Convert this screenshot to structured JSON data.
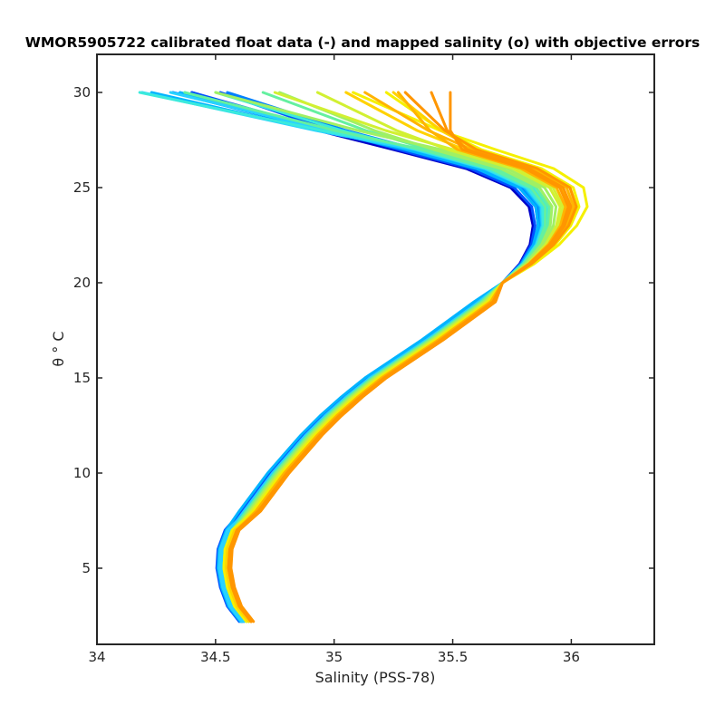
{
  "chart_data": {
    "type": "line",
    "title": "WMOR5905722 calibrated float data (-) and mapped salinity (o) with objective errors",
    "xlabel": "Salinity (PSS-78)",
    "ylabel": "θ ° C",
    "xlim": [
      34.0,
      36.35
    ],
    "ylim": [
      1.0,
      32.0
    ],
    "x_ticks": [
      34,
      34.5,
      35,
      35.5,
      36
    ],
    "x_tick_labels": [
      "34",
      "34.5",
      "35",
      "35.5",
      "36"
    ],
    "y_ticks": [
      5,
      10,
      15,
      20,
      25,
      30
    ],
    "y_tick_labels": [
      "5",
      "10",
      "15",
      "20",
      "25",
      "30"
    ],
    "grid": false,
    "colormap": "jet (profiles colored early blue to late orange)",
    "colors": {
      "frame": "#262626",
      "palette": [
        "#0000c8",
        "#0050ff",
        "#0080ff",
        "#00b4ff",
        "#28d2ff",
        "#3ceadc",
        "#64f0a0",
        "#a0f064",
        "#d2f032",
        "#f5f000",
        "#ffd200",
        "#ffb400",
        "#ff9600"
      ]
    },
    "base_profile": {
      "theta": [
        2.2,
        3.0,
        4.0,
        5.0,
        6.0,
        7.0,
        8.0,
        9.0,
        10.0,
        11.0,
        12.0,
        13.0,
        14.0,
        15.0,
        16.0,
        17.0,
        18.0,
        19.0,
        20.0,
        21.0,
        22.0,
        23.0,
        24.0,
        25.0,
        26.0,
        27.0,
        28.0,
        29.0,
        30.0
      ],
      "salinity": [
        34.63,
        34.58,
        34.55,
        34.535,
        34.54,
        34.57,
        34.62,
        34.68,
        34.74,
        34.81,
        34.88,
        34.96,
        35.05,
        35.15,
        35.27,
        35.39,
        35.5,
        35.61,
        35.71,
        35.79,
        35.84,
        35.86,
        35.85,
        35.78,
        35.6,
        35.3,
        34.95,
        34.65,
        34.35
      ]
    },
    "series": [
      {
        "color_index": 0,
        "deep_offset": -0.02,
        "mid_offset": 0.0,
        "upper_offset": -0.05,
        "surface_offset": 0.1
      },
      {
        "color_index": 1,
        "deep_offset": -0.01,
        "mid_offset": 0.01,
        "upper_offset": 0.0,
        "surface_offset": 0.05
      },
      {
        "color_index": 1,
        "deep_offset": -0.03,
        "mid_offset": -0.01,
        "upper_offset": -0.03,
        "surface_offset": 0.2
      },
      {
        "color_index": 2,
        "deep_offset": 0.0,
        "mid_offset": 0.0,
        "upper_offset": 0.02,
        "surface_offset": -0.05
      },
      {
        "color_index": 2,
        "deep_offset": -0.015,
        "mid_offset": 0.02,
        "upper_offset": 0.05,
        "surface_offset": 0.15
      },
      {
        "color_index": 3,
        "deep_offset": -0.02,
        "mid_offset": 0.01,
        "upper_offset": 0.0,
        "surface_offset": 0.0
      },
      {
        "color_index": 3,
        "deep_offset": -0.025,
        "mid_offset": -0.02,
        "upper_offset": 0.03,
        "surface_offset": -0.15
      },
      {
        "color_index": 4,
        "deep_offset": -0.01,
        "mid_offset": 0.0,
        "upper_offset": 0.04,
        "surface_offset": -0.2
      },
      {
        "color_index": 4,
        "deep_offset": -0.02,
        "mid_offset": 0.015,
        "upper_offset": 0.06,
        "surface_offset": -0.1
      },
      {
        "color_index": 5,
        "deep_offset": 0.0,
        "mid_offset": 0.02,
        "upper_offset": 0.08,
        "surface_offset": -0.25
      },
      {
        "color_index": 5,
        "deep_offset": 0.01,
        "mid_offset": 0.03,
        "upper_offset": 0.05,
        "surface_offset": 0.1
      },
      {
        "color_index": 6,
        "deep_offset": 0.0,
        "mid_offset": 0.01,
        "upper_offset": 0.07,
        "surface_offset": -0.05
      },
      {
        "color_index": 6,
        "deep_offset": 0.01,
        "mid_offset": 0.02,
        "upper_offset": 0.1,
        "surface_offset": 0.25
      },
      {
        "color_index": 7,
        "deep_offset": 0.0,
        "mid_offset": 0.03,
        "upper_offset": 0.12,
        "surface_offset": 0.3
      },
      {
        "color_index": 7,
        "deep_offset": 0.01,
        "mid_offset": 0.02,
        "upper_offset": 0.15,
        "surface_offset": 0.0
      },
      {
        "color_index": 8,
        "deep_offset": 0.0,
        "mid_offset": 0.04,
        "upper_offset": 0.18,
        "surface_offset": 0.4
      },
      {
        "color_index": 8,
        "deep_offset": 0.01,
        "mid_offset": 0.03,
        "upper_offset": 0.2,
        "surface_offset": 0.2
      },
      {
        "color_index": 9,
        "deep_offset": 0.0,
        "mid_offset": 0.05,
        "upper_offset": 0.32,
        "surface_offset": 0.55
      },
      {
        "color_index": 9,
        "deep_offset": 0.01,
        "mid_offset": 0.04,
        "upper_offset": 0.38,
        "surface_offset": 0.35
      },
      {
        "color_index": 10,
        "deep_offset": 0.02,
        "mid_offset": 0.05,
        "upper_offset": 0.3,
        "surface_offset": 0.6
      },
      {
        "color_index": 10,
        "deep_offset": 0.01,
        "mid_offset": 0.06,
        "upper_offset": 0.25,
        "surface_offset": 0.45
      },
      {
        "color_index": 11,
        "deep_offset": 0.02,
        "mid_offset": 0.06,
        "upper_offset": 0.28,
        "surface_offset": 0.5
      },
      {
        "color_index": 11,
        "deep_offset": 0.02,
        "mid_offset": 0.05,
        "upper_offset": 0.22,
        "surface_offset": 0.7
      },
      {
        "color_index": 12,
        "deep_offset": 0.02,
        "mid_offset": 0.07,
        "upper_offset": 0.26,
        "surface_offset": 0.8
      },
      {
        "color_index": 12,
        "deep_offset": 0.02,
        "mid_offset": 0.06,
        "upper_offset": 0.3,
        "surface_offset": 0.65
      },
      {
        "color_index": 12,
        "deep_offset": 0.03,
        "mid_offset": 0.07,
        "upper_offset": 0.24,
        "surface_offset": 0.9
      }
    ]
  }
}
